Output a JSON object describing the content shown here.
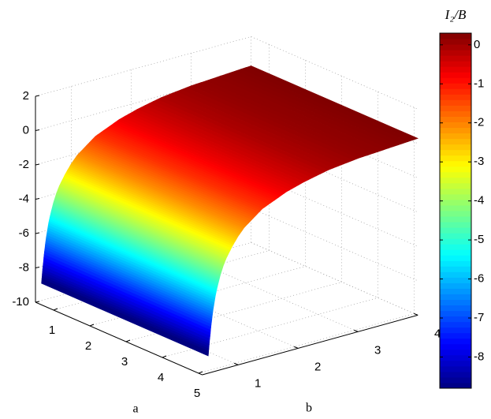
{
  "chart_data": {
    "type": "surface3d",
    "xlabel": "a",
    "ylabel": "b",
    "colorbar_label": "I₂/B",
    "xlim": [
      0.5,
      5.1
    ],
    "ylim": [
      0.4,
      4.0
    ],
    "zlim": [
      -10,
      2
    ],
    "xticks": [
      1,
      2,
      3,
      4,
      5
    ],
    "yticks": [
      1,
      2,
      3,
      4
    ],
    "zticks": [
      -10,
      -8,
      -6,
      -4,
      -2,
      0,
      2
    ],
    "surface": {
      "y": [
        0.5,
        0.52,
        0.55,
        0.58,
        0.62,
        0.66,
        0.7,
        0.75,
        0.8,
        0.9,
        1.0,
        1.1,
        1.25,
        1.4,
        1.6,
        1.8,
        2.1,
        2.5,
        3,
        3.5,
        4
      ],
      "z": [
        -9,
        -8.2,
        -7.2,
        -6.4,
        -5.6,
        -5,
        -4.5,
        -4,
        -3.6,
        -3,
        -2.5,
        -2.1,
        -1.7,
        -1.3,
        -1,
        -0.7,
        -0.4,
        -0.1,
        0.1,
        0.2,
        0.3
      ]
    },
    "clim": [
      -8.8,
      0.3
    ],
    "colorbar_ticks": [
      0,
      -1,
      -2,
      -3,
      -4,
      -5,
      -6,
      -7,
      -8
    ],
    "colormap": "jet",
    "grid": true
  }
}
